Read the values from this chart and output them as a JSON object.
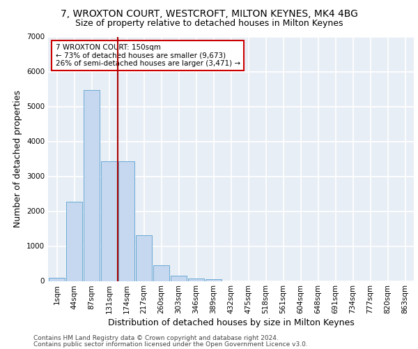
{
  "title1": "7, WROXTON COURT, WESTCROFT, MILTON KEYNES, MK4 4BG",
  "title2": "Size of property relative to detached houses in Milton Keynes",
  "xlabel": "Distribution of detached houses by size in Milton Keynes",
  "ylabel": "Number of detached properties",
  "footer1": "Contains HM Land Registry data © Crown copyright and database right 2024.",
  "footer2": "Contains public sector information licensed under the Open Government Licence v3.0.",
  "bar_labels": [
    "1sqm",
    "44sqm",
    "87sqm",
    "131sqm",
    "174sqm",
    "217sqm",
    "260sqm",
    "303sqm",
    "346sqm",
    "389sqm",
    "432sqm",
    "475sqm",
    "518sqm",
    "561sqm",
    "604sqm",
    "648sqm",
    "691sqm",
    "734sqm",
    "777sqm",
    "820sqm",
    "863sqm"
  ],
  "bar_values": [
    90,
    2280,
    5480,
    3430,
    3430,
    1310,
    460,
    155,
    80,
    45,
    0,
    0,
    0,
    0,
    0,
    0,
    0,
    0,
    0,
    0,
    0
  ],
  "bar_color": "#c5d8ef",
  "bar_edge_color": "#6aaad4",
  "vline_color": "#aa0000",
  "annotation_text": "7 WROXTON COURT: 150sqm\n← 73% of detached houses are smaller (9,673)\n26% of semi-detached houses are larger (3,471) →",
  "annotation_box_color": "white",
  "annotation_box_edge_color": "#cc0000",
  "ylim": [
    0,
    7000
  ],
  "yticks": [
    0,
    1000,
    2000,
    3000,
    4000,
    5000,
    6000,
    7000
  ],
  "bg_color": "#e8eef5",
  "grid_color": "white",
  "title1_fontsize": 10,
  "title2_fontsize": 9,
  "xlabel_fontsize": 9,
  "ylabel_fontsize": 9,
  "tick_fontsize": 7.5,
  "footer_fontsize": 6.5
}
